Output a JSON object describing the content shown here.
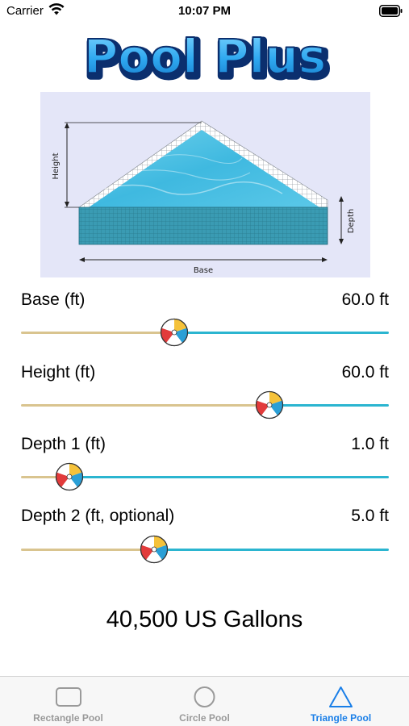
{
  "status_bar": {
    "carrier": "Carrier",
    "time": "10:07 PM",
    "icons": [
      "wifi-icon",
      "battery-icon"
    ]
  },
  "app": {
    "title": "Pool Plus",
    "title_fill": "#2ea8f0",
    "title_outline": "#0b2f6e"
  },
  "diagram": {
    "height_label": "Height",
    "depth_label": "Depth",
    "base_label": "Base",
    "water_color": "#4fc3e6",
    "background": "#e4e6f8"
  },
  "sliders": [
    {
      "label": "Base (ft)",
      "value": "60.0 ft",
      "position": 0.41
    },
    {
      "label": "Height (ft)",
      "value": "60.0 ft",
      "position": 0.69
    },
    {
      "label": "Depth 1 (ft)",
      "value": "1.0 ft",
      "position": 0.1
    },
    {
      "label": "Depth 2 (ft, optional)",
      "value": "5.0 ft",
      "position": 0.35
    }
  ],
  "result": {
    "text": "40,500  US Gallons"
  },
  "tabs": [
    {
      "label": "Rectangle Pool",
      "icon": "rectangle-icon",
      "active": false
    },
    {
      "label": "Circle Pool",
      "icon": "circle-icon",
      "active": false
    },
    {
      "label": "Triangle Pool",
      "icon": "triangle-icon",
      "active": true
    }
  ],
  "colors": {
    "track_filled": "#d9c48f",
    "track_empty": "#2bb5d0",
    "tab_active": "#1a7fe8",
    "tab_inactive": "#9a9a9a"
  }
}
